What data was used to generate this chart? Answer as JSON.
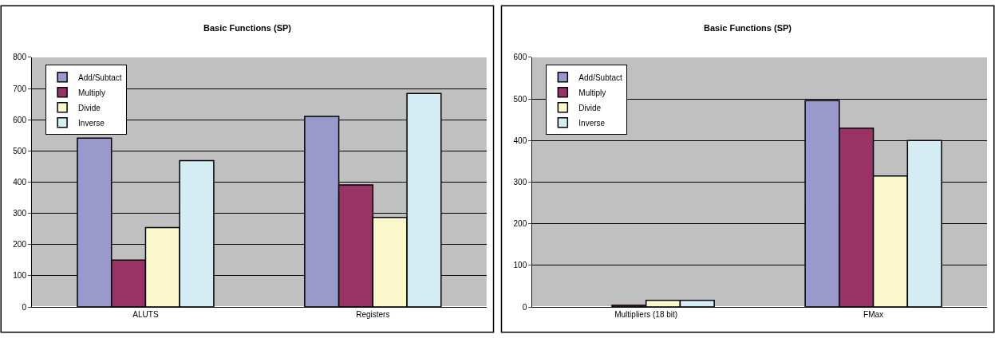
{
  "chart_data": [
    {
      "type": "bar",
      "title": "Basic Functions (SP)",
      "categories": [
        "ALUTS",
        "Registers"
      ],
      "ylim": [
        0,
        800
      ],
      "yticks": [
        0,
        100,
        200,
        300,
        400,
        500,
        600,
        700,
        800
      ],
      "grid": "y",
      "legend": "top left",
      "series": [
        {
          "name": "Add/Subtact",
          "color": "#9999cc",
          "values": [
            541,
            611
          ]
        },
        {
          "name": "Multiply",
          "color": "#993366",
          "values": [
            150,
            391
          ]
        },
        {
          "name": "Divide",
          "color": "#fbf8cc",
          "values": [
            254,
            287
          ]
        },
        {
          "name": "Inverse",
          "color": "#d4ecf4",
          "values": [
            469,
            684
          ]
        }
      ]
    },
    {
      "type": "bar",
      "title": "Basic Functions (SP)",
      "categories": [
        "Multipliers (18 bit)",
        "FMax"
      ],
      "ylim": [
        0,
        600
      ],
      "yticks": [
        0,
        100,
        200,
        300,
        400,
        500,
        600
      ],
      "grid": "y",
      "legend": "top left",
      "series": [
        {
          "name": "Add/Subtact",
          "color": "#9999cc",
          "values": [
            null,
            496
          ]
        },
        {
          "name": "Multiply",
          "color": "#993366",
          "values": [
            4,
            430
          ]
        },
        {
          "name": "Divide",
          "color": "#fbf8cc",
          "values": [
            16,
            315
          ]
        },
        {
          "name": "Inverse",
          "color": "#d4ecf4",
          "values": [
            16,
            400
          ]
        }
      ]
    }
  ]
}
